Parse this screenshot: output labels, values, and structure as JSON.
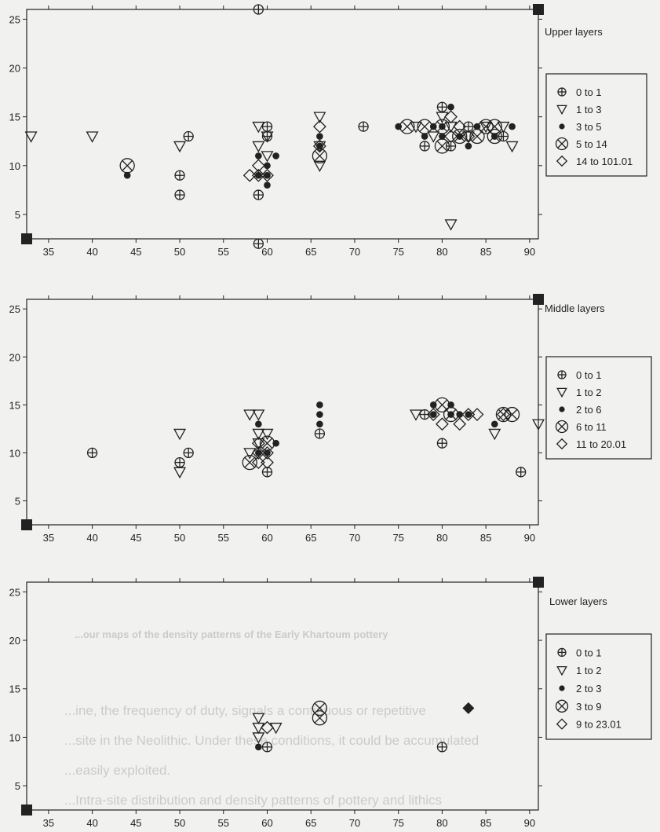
{
  "chart_data": [
    {
      "type": "scatter",
      "title": "Upper layers",
      "xlim": [
        32.5,
        91
      ],
      "ylim": [
        2.5,
        26
      ],
      "xticks": [
        35,
        40,
        45,
        50,
        55,
        60,
        65,
        70,
        75,
        80,
        85,
        90
      ],
      "yticks": [
        5,
        10,
        15,
        20,
        25
      ],
      "legend_position": "right",
      "legend": [
        {
          "marker": "circle-plus",
          "label": "0  to  1"
        },
        {
          "marker": "triangle",
          "label": "1  to  3"
        },
        {
          "marker": "dot",
          "label": "3  to  5"
        },
        {
          "marker": "circle-x",
          "label": "5  to  14"
        },
        {
          "marker": "diamond",
          "label": "14  to  101.01"
        }
      ],
      "series": [
        {
          "marker": "circle-plus",
          "points": [
            [
              59,
              26
            ],
            [
              60,
              14
            ],
            [
              60,
              13
            ],
            [
              51,
              13
            ],
            [
              50,
              9
            ],
            [
              50,
              7
            ],
            [
              59,
              7
            ],
            [
              59,
              2
            ],
            [
              71,
              14
            ],
            [
              80,
              16
            ],
            [
              78,
              12
            ],
            [
              81,
              12
            ],
            [
              83,
              14
            ],
            [
              87,
              13
            ]
          ]
        },
        {
          "marker": "triangle",
          "points": [
            [
              33,
              13
            ],
            [
              40,
              13
            ],
            [
              50,
              12
            ],
            [
              59,
              14
            ],
            [
              59,
              12
            ],
            [
              60,
              13
            ],
            [
              60,
              11
            ],
            [
              66,
              15
            ],
            [
              66,
              12
            ],
            [
              66,
              10
            ],
            [
              80,
              15
            ],
            [
              81,
              4
            ],
            [
              83,
              13
            ],
            [
              88,
              12
            ],
            [
              79,
              13
            ],
            [
              85,
              14
            ],
            [
              87,
              14
            ],
            [
              81,
              14
            ],
            [
              77,
              14
            ]
          ]
        },
        {
          "marker": "dot",
          "points": [
            [
              44,
              9
            ],
            [
              59,
              11
            ],
            [
              59,
              9
            ],
            [
              60,
              10
            ],
            [
              60,
              9
            ],
            [
              60,
              8
            ],
            [
              61,
              11
            ],
            [
              66,
              13
            ],
            [
              66,
              12
            ],
            [
              75,
              14
            ],
            [
              78,
              13
            ],
            [
              79,
              14
            ],
            [
              80,
              13
            ],
            [
              80,
              14
            ],
            [
              81,
              16
            ],
            [
              82,
              13
            ],
            [
              83,
              12
            ],
            [
              84,
              14
            ],
            [
              86,
              13
            ],
            [
              88,
              14
            ]
          ]
        },
        {
          "marker": "circle-x",
          "points": [
            [
              44,
              10
            ],
            [
              66,
              11
            ],
            [
              76,
              14
            ],
            [
              78,
              14
            ],
            [
              80,
              14
            ],
            [
              80,
              12
            ],
            [
              82,
              13
            ],
            [
              84,
              13
            ],
            [
              85,
              14
            ],
            [
              86,
              13
            ],
            [
              86,
              14
            ]
          ]
        },
        {
          "marker": "diamond",
          "points": [
            [
              58,
              9
            ],
            [
              59,
              10
            ],
            [
              59,
              9
            ],
            [
              60,
              9
            ],
            [
              66,
              14
            ],
            [
              66,
              12
            ],
            [
              81,
              15
            ],
            [
              81,
              13
            ],
            [
              82,
              14
            ],
            [
              83,
              13
            ]
          ]
        }
      ]
    },
    {
      "type": "scatter",
      "title": "Middle layers",
      "xlim": [
        32.5,
        91
      ],
      "ylim": [
        2.5,
        26
      ],
      "xticks": [
        35,
        40,
        45,
        50,
        55,
        60,
        65,
        70,
        75,
        80,
        85,
        90
      ],
      "yticks": [
        5,
        10,
        15,
        20,
        25
      ],
      "legend_position": "right",
      "legend": [
        {
          "marker": "circle-plus",
          "label": "0  to  1"
        },
        {
          "marker": "triangle",
          "label": "1  to  2"
        },
        {
          "marker": "dot",
          "label": "2  to  6"
        },
        {
          "marker": "circle-x",
          "label": "6  to  11"
        },
        {
          "marker": "diamond",
          "label": "11  to  20.01"
        }
      ],
      "series": [
        {
          "marker": "circle-plus",
          "points": [
            [
              40,
              10
            ],
            [
              50,
              9
            ],
            [
              51,
              10
            ],
            [
              60,
              8
            ],
            [
              66,
              12
            ],
            [
              78,
              14
            ],
            [
              80,
              11
            ],
            [
              89,
              8
            ]
          ]
        },
        {
          "marker": "triangle",
          "points": [
            [
              50,
              12
            ],
            [
              50,
              8
            ],
            [
              58,
              14
            ],
            [
              58,
              10
            ],
            [
              59,
              14
            ],
            [
              59,
              12
            ],
            [
              59,
              11
            ],
            [
              60,
              12
            ],
            [
              77,
              14
            ],
            [
              86,
              12
            ],
            [
              91,
              13
            ]
          ]
        },
        {
          "marker": "dot",
          "points": [
            [
              59,
              13
            ],
            [
              59,
              10
            ],
            [
              60,
              10
            ],
            [
              61,
              11
            ],
            [
              66,
              15
            ],
            [
              66,
              14
            ],
            [
              66,
              13
            ],
            [
              79,
              15
            ],
            [
              79,
              14
            ],
            [
              81,
              14
            ],
            [
              81,
              15
            ],
            [
              82,
              14
            ],
            [
              83,
              14
            ],
            [
              86,
              13
            ]
          ]
        },
        {
          "marker": "circle-x",
          "points": [
            [
              58,
              9
            ],
            [
              60,
              11
            ],
            [
              80,
              15
            ],
            [
              81,
              14
            ],
            [
              87,
              14
            ],
            [
              88,
              14
            ]
          ]
        },
        {
          "marker": "diamond",
          "points": [
            [
              59,
              11
            ],
            [
              59,
              10
            ],
            [
              59,
              9
            ],
            [
              60,
              10
            ],
            [
              60,
              9
            ],
            [
              79,
              14
            ],
            [
              80,
              13
            ],
            [
              82,
              13
            ],
            [
              83,
              14
            ],
            [
              84,
              14
            ],
            [
              87,
              14
            ]
          ]
        }
      ]
    },
    {
      "type": "scatter",
      "title": "Lower layers",
      "xlim": [
        32.5,
        91
      ],
      "ylim": [
        2.5,
        26
      ],
      "xticks": [
        35,
        40,
        45,
        50,
        55,
        60,
        65,
        70,
        75,
        80,
        85,
        90
      ],
      "yticks": [
        5,
        10,
        15,
        20,
        25
      ],
      "legend_position": "right",
      "legend": [
        {
          "marker": "circle-plus",
          "label": "0  to  1"
        },
        {
          "marker": "triangle",
          "label": "1  to  2"
        },
        {
          "marker": "dot",
          "label": "2  to  3"
        },
        {
          "marker": "circle-x",
          "label": "3  to  9"
        },
        {
          "marker": "diamond",
          "label": "9  to  23.01"
        }
      ],
      "series": [
        {
          "marker": "circle-plus",
          "points": [
            [
              60,
              9
            ],
            [
              80,
              9
            ]
          ]
        },
        {
          "marker": "triangle",
          "points": [
            [
              59,
              12
            ],
            [
              59,
              11
            ],
            [
              59,
              10
            ],
            [
              61,
              11
            ]
          ]
        },
        {
          "marker": "dot",
          "points": [
            [
              59,
              9
            ]
          ]
        },
        {
          "marker": "circle-x",
          "points": [
            [
              66,
              13
            ],
            [
              66,
              12
            ]
          ]
        },
        {
          "marker": "diamond",
          "points": [
            [
              60,
              11
            ],
            [
              83,
              13
            ]
          ]
        }
      ],
      "filled_diamond_points": [
        [
          83,
          13
        ]
      ]
    }
  ],
  "background_text": {
    "caption": "...our maps of the density patterns of the Early Khartoum pottery",
    "line1": "...ine, the frequency of duty, signals a continuous or repetitive",
    "line2": "...site in the Neolithic. Under these conditions, it could be accumulated",
    "line3": "...easily exploited.",
    "line4": "...Intra-site distribution and density patterns of pottery and lithics"
  }
}
